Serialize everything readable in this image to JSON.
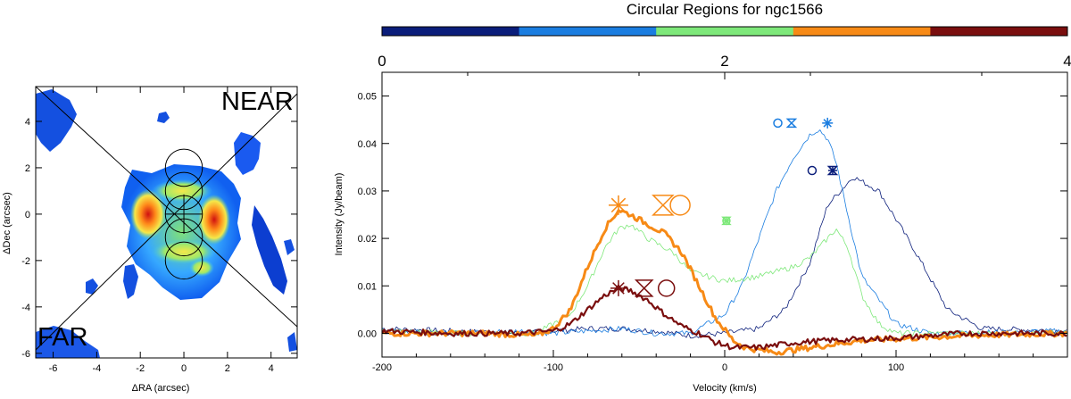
{
  "chart_data": [
    {
      "type": "heatmap",
      "name": "moment-map",
      "xlabel": "ΔRA (arcsec)",
      "ylabel": "ΔDec (arcsec)",
      "xlim": [
        -6.8,
        5.2
      ],
      "ylim": [
        -6.2,
        5.5
      ],
      "xticks": [
        "-6",
        "-4",
        "-2",
        "0",
        "2",
        "4"
      ],
      "yticks": [
        "-6",
        "-4",
        "-2",
        "0",
        "2",
        "4"
      ],
      "label_near": "NEAR",
      "label_far": "FAR",
      "apertures_dec": [
        2,
        1,
        0,
        -1,
        -2
      ],
      "aperture_radius": 0.85
    },
    {
      "type": "line",
      "name": "spectra",
      "title": "Circular Regions for ngc1566",
      "xlabel": "Velocity (km/s)",
      "ylabel": "Intensity (Jy/beam)",
      "xlim": [
        -200,
        200
      ],
      "ylim": [
        -0.005,
        0.055
      ],
      "xticks": [
        "-200",
        "-100",
        "0",
        "100"
      ],
      "yticks": [
        "0.00",
        "0.01",
        "0.02",
        "0.03",
        "0.04",
        "0.05"
      ],
      "colorbar": {
        "ticks": [
          "0",
          "2",
          "4"
        ],
        "colors": [
          "#0a1d7a",
          "#1a7de0",
          "#7ee87a",
          "#f78a16",
          "#7a0e0e"
        ]
      },
      "series": [
        {
          "name": "region-0",
          "color": "#0a1d7a",
          "width": 0.8,
          "x": [
            -200,
            -160,
            -120,
            -100,
            -80,
            -60,
            -40,
            -20,
            0,
            20,
            35,
            50,
            60,
            75,
            90,
            110,
            130,
            150,
            200
          ],
          "y": [
            0.001,
            0.0005,
            0.0,
            0.0005,
            0.001,
            0.001,
            0.0005,
            -0.0005,
            0.0,
            0.001,
            0.005,
            0.015,
            0.027,
            0.033,
            0.03,
            0.018,
            0.005,
            0.001,
            0.0005
          ]
        },
        {
          "name": "region-1",
          "color": "#1a7de0",
          "width": 0.8,
          "x": [
            -200,
            -160,
            -120,
            -100,
            -80,
            -60,
            -40,
            -20,
            0,
            10,
            20,
            30,
            40,
            50,
            55,
            60,
            65,
            70,
            80,
            100,
            120,
            200
          ],
          "y": [
            0.0005,
            0.0,
            0.0005,
            0.0,
            0.0005,
            0.001,
            0.0,
            0.0,
            0.004,
            0.01,
            0.02,
            0.03,
            0.037,
            0.042,
            0.043,
            0.041,
            0.036,
            0.028,
            0.012,
            0.002,
            0.0,
            0.0005
          ]
        },
        {
          "name": "region-2",
          "color": "#7ee87a",
          "width": 0.8,
          "x": [
            -200,
            -150,
            -110,
            -90,
            -80,
            -70,
            -62,
            -55,
            -45,
            -30,
            -20,
            -10,
            0,
            10,
            20,
            30,
            40,
            50,
            60,
            65,
            72,
            80,
            90,
            100,
            120,
            200
          ],
          "y": [
            0.0005,
            0.0,
            0.0,
            0.004,
            0.01,
            0.018,
            0.022,
            0.023,
            0.02,
            0.017,
            0.013,
            0.012,
            0.011,
            0.0115,
            0.012,
            0.013,
            0.014,
            0.016,
            0.02,
            0.022,
            0.018,
            0.008,
            0.002,
            0.0,
            0.0,
            0.0
          ]
        },
        {
          "name": "region-3",
          "color": "#f78a16",
          "width": 3,
          "x": [
            -200,
            -140,
            -110,
            -100,
            -90,
            -80,
            -70,
            -62,
            -55,
            -45,
            -35,
            -25,
            -15,
            -5,
            5,
            12,
            20,
            30,
            50,
            80,
            110,
            140,
            200
          ],
          "y": [
            0.0,
            0.0,
            -0.0005,
            0.001,
            0.005,
            0.014,
            0.022,
            0.026,
            0.025,
            0.023,
            0.021,
            0.017,
            0.01,
            0.003,
            -0.0015,
            -0.003,
            -0.0035,
            -0.004,
            -0.003,
            -0.0015,
            -0.001,
            -0.0005,
            0.0
          ]
        },
        {
          "name": "region-4",
          "color": "#7a0e0e",
          "width": 2.2,
          "x": [
            -200,
            -160,
            -120,
            -100,
            -90,
            -80,
            -70,
            -62,
            -55,
            -45,
            -35,
            -25,
            -15,
            -5,
            5,
            20,
            40,
            60,
            100,
            140,
            200
          ],
          "y": [
            0.0005,
            0.0,
            0.0,
            0.0005,
            0.002,
            0.005,
            0.008,
            0.0095,
            0.009,
            0.007,
            0.004,
            0.0015,
            0.0,
            -0.002,
            -0.003,
            -0.003,
            -0.002,
            -0.0015,
            -0.001,
            0.0,
            0.0
          ]
        }
      ],
      "markers": [
        {
          "name": "region-3-peak-star",
          "color": "#f78a16",
          "x": -62,
          "y": 0.027,
          "symbol": "asterisk",
          "size": 11
        },
        {
          "name": "region-3-hourglass",
          "color": "#f78a16",
          "x": -36,
          "y": 0.027,
          "symbol": "hourglass",
          "size": 11
        },
        {
          "name": "region-3-circle",
          "color": "#f78a16",
          "x": -26,
          "y": 0.027,
          "symbol": "circle",
          "size": 11
        },
        {
          "name": "region-4-peak-star",
          "color": "#7a0e0e",
          "x": -62,
          "y": 0.0095,
          "symbol": "asterisk",
          "size": 9
        },
        {
          "name": "region-4-hourglass",
          "color": "#7a0e0e",
          "x": -47,
          "y": 0.0095,
          "symbol": "hourglass",
          "size": 9
        },
        {
          "name": "region-4-circle",
          "color": "#7a0e0e",
          "x": -34,
          "y": 0.0095,
          "symbol": "circle",
          "size": 9
        },
        {
          "name": "region-2-asterisk",
          "color": "#7ee87a",
          "x": 1,
          "y": 0.0237,
          "symbol": "asterisk",
          "size": 4
        },
        {
          "name": "region-2-hourglass",
          "color": "#7ee87a",
          "x": 1,
          "y": 0.0237,
          "symbol": "hourglass",
          "size": 4
        },
        {
          "name": "region-2-circle",
          "color": "#7ee87a",
          "x": 1,
          "y": 0.0237,
          "symbol": "circle",
          "size": 4
        },
        {
          "name": "region-1-circle",
          "color": "#1a7de0",
          "x": 31,
          "y": 0.0443,
          "symbol": "circle",
          "size": 4.5
        },
        {
          "name": "region-1-hourglass",
          "color": "#1a7de0",
          "x": 39,
          "y": 0.0443,
          "symbol": "hourglass",
          "size": 4.5
        },
        {
          "name": "region-1-peak-star",
          "color": "#1a7de0",
          "x": 60,
          "y": 0.0443,
          "symbol": "asterisk",
          "size": 6
        },
        {
          "name": "region-0-circle",
          "color": "#0a1d7a",
          "x": 51,
          "y": 0.0343,
          "symbol": "circle",
          "size": 4.5
        },
        {
          "name": "region-0-hourglass",
          "color": "#0a1d7a",
          "x": 63,
          "y": 0.0343,
          "symbol": "hourglass",
          "size": 4.5
        },
        {
          "name": "region-0-peak-star",
          "color": "#0a1d7a",
          "x": 63,
          "y": 0.0343,
          "symbol": "asterisk",
          "size": 5
        }
      ]
    }
  ]
}
